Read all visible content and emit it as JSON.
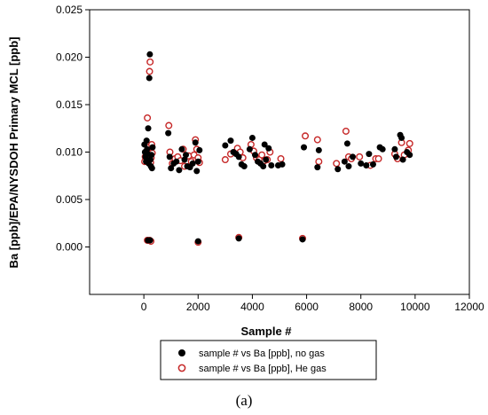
{
  "chart_data": {
    "type": "scatter",
    "xlabel": "Sample #",
    "ylabel": "Ba [ppb]/EPA/NYSDOH Primary MCL [ppb]",
    "xlim": [
      -2000,
      12000
    ],
    "ylim": [
      -0.005,
      0.025
    ],
    "x_ticks": [
      "0",
      "2000",
      "4000",
      "6000",
      "8000",
      "10000",
      "12000"
    ],
    "x_tick_values": [
      0,
      2000,
      4000,
      6000,
      8000,
      10000,
      12000
    ],
    "y_ticks": [
      "0.000",
      "0.005",
      "0.010",
      "0.015",
      "0.020",
      "0.025"
    ],
    "y_tick_values": [
      0.0,
      0.005,
      0.01,
      0.015,
      0.02,
      0.025
    ],
    "grid": false,
    "legend_position": "bottom-center",
    "caption": "(a)",
    "series": [
      {
        "name": "sample # vs Ba [ppb], no gas",
        "marker": "filled-circle",
        "color": "#000000",
        "points": [
          [
            20,
            0.0108
          ],
          [
            40,
            0.01
          ],
          [
            60,
            0.0095
          ],
          [
            80,
            0.009
          ],
          [
            100,
            0.0112
          ],
          [
            120,
            0.0103
          ],
          [
            140,
            0.0098
          ],
          [
            160,
            0.0125
          ],
          [
            180,
            0.0088
          ],
          [
            200,
            0.0178
          ],
          [
            220,
            0.0203
          ],
          [
            240,
            0.0092
          ],
          [
            260,
            0.0085
          ],
          [
            280,
            0.0097
          ],
          [
            300,
            0.0083
          ],
          [
            320,
            0.0105
          ],
          [
            150,
            0.0007
          ],
          [
            230,
            0.0007
          ],
          [
            900,
            0.012
          ],
          [
            950,
            0.0095
          ],
          [
            1000,
            0.0083
          ],
          [
            1100,
            0.0088
          ],
          [
            1200,
            0.009
          ],
          [
            1300,
            0.0081
          ],
          [
            1400,
            0.0103
          ],
          [
            1500,
            0.0092
          ],
          [
            1550,
            0.0097
          ],
          [
            1600,
            0.0085
          ],
          [
            1700,
            0.0084
          ],
          [
            1800,
            0.0088
          ],
          [
            1900,
            0.011
          ],
          [
            1950,
            0.008
          ],
          [
            2000,
            0.009
          ],
          [
            2050,
            0.0102
          ],
          [
            2000,
            0.0006
          ],
          [
            3000,
            0.0107
          ],
          [
            3200,
            0.0112
          ],
          [
            3300,
            0.01
          ],
          [
            3400,
            0.0098
          ],
          [
            3500,
            0.0095
          ],
          [
            3600,
            0.0087
          ],
          [
            3700,
            0.0085
          ],
          [
            3500,
            0.0009
          ],
          [
            3900,
            0.0103
          ],
          [
            4000,
            0.0115
          ],
          [
            4100,
            0.0097
          ],
          [
            4200,
            0.009
          ],
          [
            4300,
            0.0088
          ],
          [
            4400,
            0.0085
          ],
          [
            4450,
            0.0108
          ],
          [
            4500,
            0.0092
          ],
          [
            4600,
            0.0104
          ],
          [
            4700,
            0.0086
          ],
          [
            4950,
            0.0086
          ],
          [
            5100,
            0.0087
          ],
          [
            5850,
            0.0008
          ],
          [
            5900,
            0.0105
          ],
          [
            6400,
            0.0084
          ],
          [
            6450,
            0.0102
          ],
          [
            7150,
            0.0082
          ],
          [
            7400,
            0.009
          ],
          [
            7500,
            0.0109
          ],
          [
            7550,
            0.0085
          ],
          [
            7700,
            0.0095
          ],
          [
            8000,
            0.0088
          ],
          [
            8200,
            0.0086
          ],
          [
            8300,
            0.0098
          ],
          [
            8450,
            0.0087
          ],
          [
            8700,
            0.0105
          ],
          [
            8800,
            0.0103
          ],
          [
            9250,
            0.0103
          ],
          [
            9300,
            0.0095
          ],
          [
            9450,
            0.0118
          ],
          [
            9500,
            0.0115
          ],
          [
            9550,
            0.0092
          ],
          [
            9700,
            0.01
          ],
          [
            9800,
            0.0097
          ]
        ]
      },
      {
        "name": "sample # vs Ba [ppb], He gas",
        "marker": "open-circle",
        "color": "#c62828",
        "points": [
          [
            30,
            0.009
          ],
          [
            50,
            0.0095
          ],
          [
            70,
            0.01
          ],
          [
            90,
            0.0097
          ],
          [
            110,
            0.0108
          ],
          [
            130,
            0.0136
          ],
          [
            150,
            0.0092
          ],
          [
            170,
            0.0101
          ],
          [
            190,
            0.0105
          ],
          [
            210,
            0.0185
          ],
          [
            230,
            0.0195
          ],
          [
            250,
            0.0089
          ],
          [
            270,
            0.0094
          ],
          [
            290,
            0.0108
          ],
          [
            310,
            0.0099
          ],
          [
            130,
            0.0007
          ],
          [
            210,
            0.0007
          ],
          [
            260,
            0.0006
          ],
          [
            920,
            0.0128
          ],
          [
            960,
            0.01
          ],
          [
            1050,
            0.0088
          ],
          [
            1150,
            0.0093
          ],
          [
            1250,
            0.0095
          ],
          [
            1350,
            0.0091
          ],
          [
            1450,
            0.0103
          ],
          [
            1500,
            0.0085
          ],
          [
            1650,
            0.0096
          ],
          [
            1750,
            0.009
          ],
          [
            1850,
            0.0097
          ],
          [
            1900,
            0.0113
          ],
          [
            1950,
            0.0103
          ],
          [
            2000,
            0.0094
          ],
          [
            2050,
            0.0089
          ],
          [
            2000,
            0.0005
          ],
          [
            3000,
            0.0092
          ],
          [
            3200,
            0.0098
          ],
          [
            3450,
            0.0104
          ],
          [
            3550,
            0.01
          ],
          [
            3650,
            0.0094
          ],
          [
            3500,
            0.001
          ],
          [
            3950,
            0.0108
          ],
          [
            4050,
            0.0101
          ],
          [
            4150,
            0.0094
          ],
          [
            4250,
            0.0092
          ],
          [
            4350,
            0.0097
          ],
          [
            4450,
            0.0091
          ],
          [
            4550,
            0.0092
          ],
          [
            4650,
            0.01
          ],
          [
            5050,
            0.0093
          ],
          [
            5850,
            0.0009
          ],
          [
            5950,
            0.0117
          ],
          [
            6400,
            0.0113
          ],
          [
            6450,
            0.009
          ],
          [
            7100,
            0.0088
          ],
          [
            7450,
            0.0122
          ],
          [
            7550,
            0.0095
          ],
          [
            7650,
            0.0093
          ],
          [
            7950,
            0.0095
          ],
          [
            8350,
            0.0086
          ],
          [
            8550,
            0.0093
          ],
          [
            8650,
            0.0093
          ],
          [
            9250,
            0.0098
          ],
          [
            9350,
            0.0093
          ],
          [
            9500,
            0.011
          ],
          [
            9600,
            0.0097
          ],
          [
            9750,
            0.0102
          ],
          [
            9800,
            0.0109
          ]
        ]
      }
    ]
  }
}
